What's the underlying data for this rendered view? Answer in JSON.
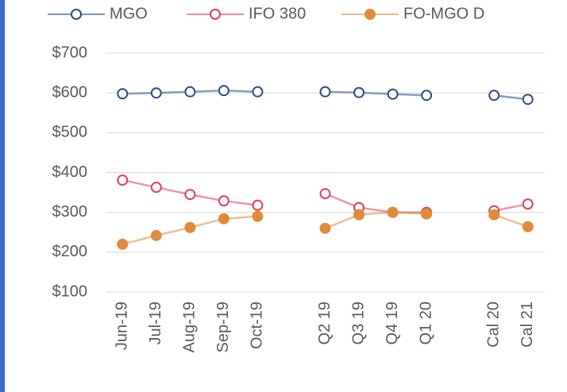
{
  "chart_data": {
    "type": "line",
    "categories": [
      "Jun-19",
      "Jul-19",
      "Aug-19",
      "Sep-19",
      "Oct-19",
      null,
      "Q2 19",
      "Q3 19",
      "Q4 19",
      "Q1 20",
      null,
      "Cal 20",
      "Cal 21"
    ],
    "series": [
      {
        "name": "MGO",
        "color": "#2f4b8a",
        "values": [
          598,
          600,
          603,
          606,
          603,
          null,
          603,
          601,
          597,
          594,
          null,
          594,
          584
        ]
      },
      {
        "name": "IFO 380",
        "color": "#e0405a",
        "values": [
          381,
          363,
          345,
          329,
          318,
          null,
          347,
          312,
          300,
          300,
          null,
          304,
          321
        ]
      },
      {
        "name": "FO-MGO D",
        "color": "#e08a3c",
        "values": [
          220,
          242,
          262,
          284,
          290,
          null,
          260,
          294,
          300,
          296,
          null,
          294,
          264
        ]
      }
    ],
    "ylim": [
      100,
      700
    ],
    "yticks": [
      {
        "value": 100,
        "label": "$100"
      },
      {
        "value": 200,
        "label": "$200"
      },
      {
        "value": 300,
        "label": "$300"
      },
      {
        "value": 400,
        "label": "$400"
      },
      {
        "value": 500,
        "label": "$500"
      },
      {
        "value": 600,
        "label": "$600"
      },
      {
        "value": 700,
        "label": "$700"
      }
    ],
    "grid": true
  }
}
